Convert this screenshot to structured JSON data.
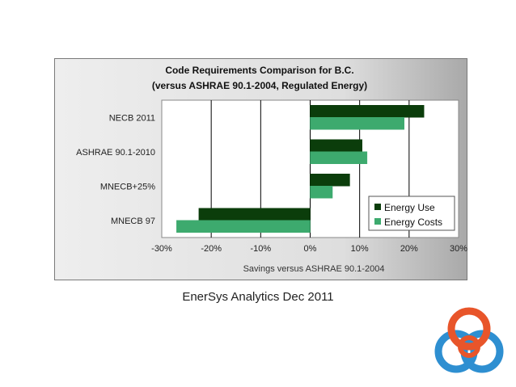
{
  "caption": "EnerSys Analytics Dec 2011",
  "colors": {
    "energy_use": "#0b3d0b",
    "energy_costs": "#3daa6e",
    "logo_orange": "#e8552a",
    "logo_blue": "#2e8fd1"
  },
  "chart_data": {
    "type": "bar",
    "orientation": "horizontal",
    "title": "Code Requirements Comparison for B.C.",
    "subtitle": "(versus ASHRAE 90.1-2004, Regulated Energy)",
    "xlabel": "Savings versus ASHRAE 90.1-2004",
    "ylabel": "",
    "categories": [
      "NECB 2011",
      "ASHRAE 90.1-2010",
      "MNECB+25%",
      "MNECB 97"
    ],
    "series": [
      {
        "name": "Energy Use",
        "values": [
          23,
          10.5,
          8,
          -22.5
        ]
      },
      {
        "name": "Energy Costs",
        "values": [
          19,
          11.5,
          4.5,
          -27
        ]
      }
    ],
    "xlim": [
      -30,
      30
    ],
    "xticks": [
      "-30%",
      "-20%",
      "-10%",
      "0%",
      "10%",
      "20%",
      "30%"
    ],
    "grid": "vertical",
    "legend_position": "bottom-right"
  }
}
